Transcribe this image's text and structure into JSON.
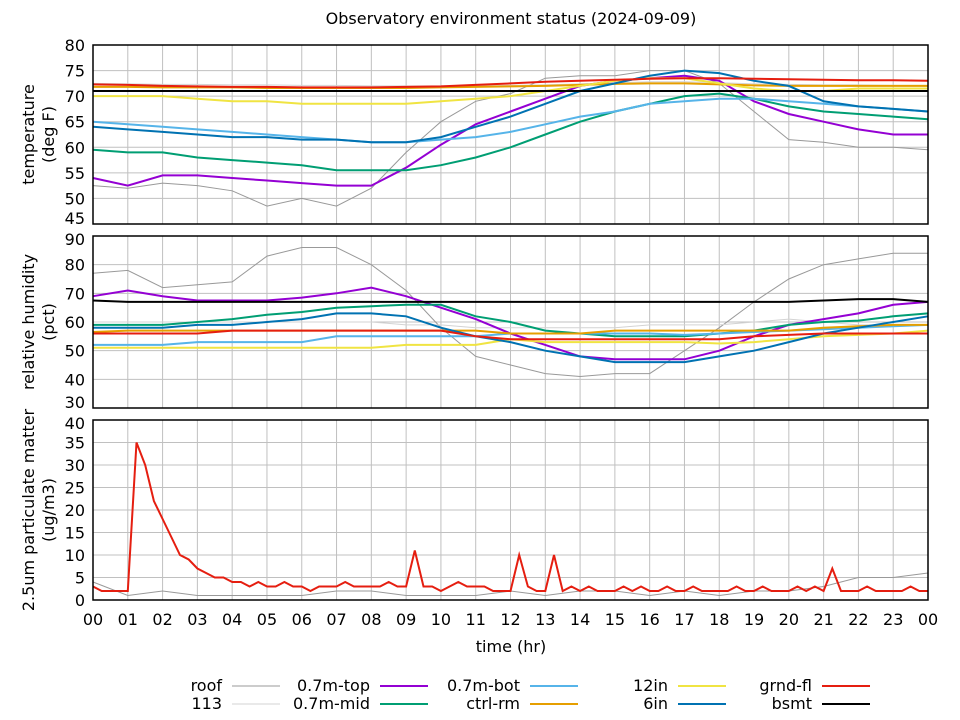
{
  "chart_data": [
    {
      "type": "line",
      "title": "Observatory environment status (2024-09-09)",
      "panel": "temperature",
      "ylabel": [
        "temperature",
        "(deg F)"
      ],
      "ylim": [
        45,
        80
      ],
      "yticks": [
        45,
        50,
        55,
        60,
        65,
        70,
        75,
        80
      ],
      "xlim": [
        0,
        24
      ],
      "x_step_hr": 1,
      "series": [
        {
          "name": "roof",
          "color": "#999999",
          "values": [
            52.5,
            52,
            53,
            52.5,
            51.5,
            48.5,
            50,
            48.5,
            52,
            59,
            65,
            69,
            70.5,
            73.5,
            74,
            74,
            75,
            75,
            72.5,
            67,
            61.5,
            61,
            60,
            60,
            59.5
          ]
        },
        {
          "name": "113",
          "color": "#d3d3d3",
          "values": [
            72.5,
            72.4,
            72.3,
            72.3,
            72.2,
            72.2,
            72.1,
            72.1,
            72,
            72,
            72,
            72,
            72.1,
            72.2,
            72.4,
            72.6,
            72.8,
            72.8,
            72.6,
            72.4,
            72.3,
            72.2,
            72.2,
            72.1,
            72.1
          ]
        },
        {
          "name": "0.7m-top",
          "color": "#9400d3",
          "values": [
            54,
            52.5,
            54.5,
            54.5,
            54,
            53.5,
            53,
            52.5,
            52.5,
            56,
            60.5,
            64.5,
            67,
            69.5,
            72,
            73,
            73.5,
            74,
            73,
            69,
            66.5,
            65,
            63.5,
            62.5,
            62.5
          ]
        },
        {
          "name": "0.7m-mid",
          "color": "#009e73",
          "values": [
            59.5,
            59,
            59,
            58,
            57.5,
            57,
            56.5,
            55.5,
            55.5,
            55.5,
            56.5,
            58,
            60,
            62.5,
            65,
            67,
            68.5,
            70,
            70.5,
            69.5,
            68,
            67,
            66.5,
            66,
            65.5
          ]
        },
        {
          "name": "0.7m-bot",
          "color": "#56b4e9",
          "values": [
            65,
            64.5,
            64,
            63.5,
            63,
            62.5,
            62,
            61.5,
            61,
            61,
            61.5,
            62,
            63,
            64.5,
            66,
            67,
            68.5,
            69,
            69.5,
            69.5,
            69,
            68.5,
            68,
            67.5,
            67
          ]
        },
        {
          "name": "ctrl-rm",
          "color": "#e69f00",
          "values": [
            71.8,
            71.8,
            71.7,
            71.7,
            71.7,
            71.6,
            71.6,
            71.6,
            71.6,
            71.6,
            71.7,
            71.8,
            71.9,
            72,
            72.2,
            72.4,
            72.5,
            72.5,
            72.3,
            72.1,
            72,
            72,
            72,
            72,
            72
          ]
        },
        {
          "name": "12in",
          "color": "#f0e442",
          "values": [
            70,
            70,
            70,
            69.5,
            69,
            69,
            68.5,
            68.5,
            68.5,
            68.5,
            69,
            69.5,
            70,
            71,
            72,
            73,
            73.5,
            73.5,
            72.5,
            71.5,
            71,
            71,
            71.5,
            71.5,
            71.5
          ]
        },
        {
          "name": "6in",
          "color": "#0072b2",
          "values": [
            64,
            63.5,
            63,
            62.5,
            62,
            62,
            61.5,
            61.5,
            61,
            61,
            62,
            64,
            66,
            68.5,
            71,
            72.5,
            74,
            75,
            74.5,
            73,
            72,
            69,
            68,
            67.5,
            67
          ]
        },
        {
          "name": "grnd-fl",
          "color": "#e51e10",
          "values": [
            72.3,
            72.2,
            72,
            71.9,
            71.8,
            71.8,
            71.7,
            71.7,
            71.7,
            71.8,
            71.9,
            72.2,
            72.5,
            72.8,
            73,
            73.2,
            73.4,
            73.5,
            73.5,
            73.4,
            73.3,
            73.2,
            73.1,
            73.1,
            73
          ]
        },
        {
          "name": "bsmt",
          "color": "#000000",
          "values": [
            71,
            71,
            71,
            71,
            71,
            71,
            71,
            71,
            71,
            71,
            71,
            71,
            71,
            71,
            71,
            71,
            71,
            71,
            71,
            71,
            71,
            71,
            71,
            71,
            71
          ]
        }
      ]
    },
    {
      "type": "line",
      "panel": "humidity",
      "ylabel": [
        "relative humidity",
        "(pct)"
      ],
      "ylim": [
        30,
        90
      ],
      "yticks": [
        30,
        40,
        50,
        60,
        70,
        80,
        90
      ],
      "xlim": [
        0,
        24
      ],
      "x_step_hr": 1,
      "series": [
        {
          "name": "roof",
          "color": "#999999",
          "values": [
            77,
            78,
            72,
            73,
            74,
            83,
            86,
            86,
            80,
            71,
            58,
            48,
            45,
            42,
            41,
            42,
            42,
            50,
            58,
            67,
            75,
            80,
            82,
            84,
            84
          ]
        },
        {
          "name": "113",
          "color": "#d3d3d3",
          "values": [
            60,
            60,
            60,
            60,
            60,
            60,
            60,
            60,
            60,
            59,
            59,
            58,
            58,
            58,
            58,
            58,
            59,
            59,
            59,
            60,
            61,
            60,
            59,
            59,
            59
          ]
        },
        {
          "name": "0.7m-top",
          "color": "#9400d3",
          "values": [
            69,
            71,
            69,
            67.5,
            67.5,
            67.5,
            68.5,
            70,
            72,
            69,
            65,
            61,
            56,
            52,
            48,
            47,
            47,
            47,
            50,
            55,
            59,
            61,
            63,
            66,
            67
          ]
        },
        {
          "name": "0.7m-mid",
          "color": "#009e73",
          "values": [
            59,
            59,
            59,
            60,
            61,
            62.5,
            63.5,
            65,
            65.5,
            66,
            66,
            62,
            60,
            57,
            56,
            55,
            55,
            55,
            56,
            57,
            59,
            60,
            60.5,
            62,
            63
          ]
        },
        {
          "name": "0.7m-bot",
          "color": "#56b4e9",
          "values": [
            52,
            52,
            52,
            53,
            53,
            53,
            53,
            55,
            55,
            55,
            55,
            55,
            56,
            56,
            56,
            56,
            56,
            55.5,
            56,
            56.5,
            57,
            57.5,
            58,
            58.5,
            59
          ]
        },
        {
          "name": "ctrl-rm",
          "color": "#e69f00",
          "values": [
            56.5,
            57,
            57,
            57,
            57,
            57,
            57,
            57,
            57,
            57,
            57,
            57,
            56,
            56,
            56,
            57,
            57,
            57,
            57,
            57,
            57,
            58,
            58.5,
            59,
            59
          ]
        },
        {
          "name": "12in",
          "color": "#f0e442",
          "values": [
            51,
            51,
            51,
            51,
            51,
            51,
            51,
            51,
            51,
            52,
            52,
            52,
            54,
            53,
            53,
            53,
            53,
            53,
            52.5,
            53,
            54,
            55,
            55.5,
            56,
            57
          ]
        },
        {
          "name": "6in",
          "color": "#0072b2",
          "values": [
            58,
            58,
            58,
            59,
            59,
            60,
            61,
            63,
            63,
            62,
            58,
            55,
            53,
            50,
            48,
            46,
            46,
            46,
            48,
            50,
            53,
            56,
            58,
            60,
            62
          ]
        },
        {
          "name": "grnd-fl",
          "color": "#e51e10",
          "values": [
            56,
            56,
            56,
            56,
            57,
            57,
            57,
            57,
            57,
            57,
            57,
            55,
            54,
            54,
            54,
            54,
            54,
            54,
            54,
            55,
            55.5,
            56,
            56,
            56,
            56
          ]
        },
        {
          "name": "bsmt",
          "color": "#000000",
          "values": [
            67.5,
            67,
            67,
            67,
            67,
            67,
            67,
            67,
            67,
            67,
            67,
            67,
            67,
            67,
            67,
            67,
            67,
            67,
            67,
            67,
            67,
            67.5,
            68,
            68,
            67
          ]
        }
      ]
    },
    {
      "type": "line",
      "panel": "particulate",
      "ylabel": [
        "2.5um particulate matter",
        "(ug/m3)"
      ],
      "xlabel": "time (hr)",
      "ylim": [
        0,
        40
      ],
      "yticks": [
        0,
        5,
        10,
        15,
        20,
        25,
        30,
        35,
        40
      ],
      "xlim": [
        0,
        24
      ],
      "xticks": [
        "00",
        "01",
        "02",
        "03",
        "04",
        "05",
        "06",
        "07",
        "08",
        "09",
        "10",
        "11",
        "12",
        "13",
        "14",
        "15",
        "16",
        "17",
        "18",
        "19",
        "20",
        "21",
        "22",
        "23",
        "00"
      ],
      "series": [
        {
          "name": "roof",
          "color": "#999999",
          "x_step_hr": 1,
          "values": [
            4,
            1,
            2,
            1,
            1,
            1,
            1,
            2,
            2,
            1,
            1,
            1,
            2,
            1,
            2,
            2,
            1,
            2,
            1,
            2,
            2,
            3,
            5,
            5,
            6
          ]
        },
        {
          "name": "grnd-fl",
          "color": "#e51e10",
          "x_step_hr": 0.25,
          "values": [
            3,
            2,
            2,
            2,
            2,
            35,
            30,
            22,
            18,
            14,
            10,
            9,
            7,
            6,
            5,
            5,
            4,
            4,
            3,
            4,
            3,
            3,
            4,
            3,
            3,
            2,
            3,
            3,
            3,
            4,
            3,
            3,
            3,
            3,
            4,
            3,
            3,
            11,
            3,
            3,
            2,
            3,
            4,
            3,
            3,
            3,
            2,
            2,
            2,
            10,
            3,
            2,
            2,
            10,
            2,
            3,
            2,
            3,
            2,
            2,
            2,
            3,
            2,
            3,
            2,
            2,
            3,
            2,
            2,
            3,
            2,
            2,
            2,
            2,
            3,
            2,
            2,
            3,
            2,
            2,
            2,
            3,
            2,
            3,
            2,
            7,
            2,
            2,
            2,
            3,
            2,
            2,
            2,
            2,
            3,
            2,
            2
          ]
        }
      ]
    }
  ],
  "legend": [
    {
      "label": "roof",
      "color": "#999999"
    },
    {
      "label": "113",
      "color": "#d3d3d3"
    },
    {
      "label": "0.7m-top",
      "color": "#9400d3"
    },
    {
      "label": "0.7m-mid",
      "color": "#009e73"
    },
    {
      "label": "0.7m-bot",
      "color": "#56b4e9"
    },
    {
      "label": "ctrl-rm",
      "color": "#e69f00"
    },
    {
      "label": "12in",
      "color": "#f0e442"
    },
    {
      "label": "6in",
      "color": "#0072b2"
    },
    {
      "label": "grnd-fl",
      "color": "#e51e10"
    },
    {
      "label": "bsmt",
      "color": "#000000"
    }
  ]
}
